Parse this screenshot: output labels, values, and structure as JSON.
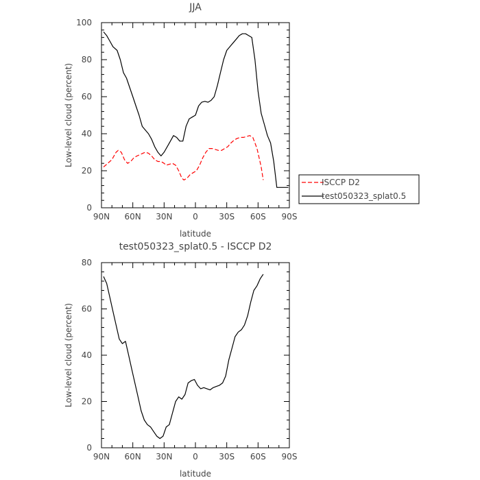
{
  "chart_data": [
    {
      "type": "line",
      "title": "JJA",
      "xlabel": "latitude",
      "ylabel": "Low-level cloud (percent)",
      "xlim": [
        -90,
        90
      ],
      "ylim": [
        0,
        100
      ],
      "x_ticks": [
        -90,
        -60,
        -30,
        0,
        30,
        60,
        90
      ],
      "x_tick_labels": [
        "90N",
        "60N",
        "30N",
        "0",
        "30S",
        "60S",
        "90S"
      ],
      "y_ticks": [
        0,
        20,
        40,
        60,
        80,
        100
      ],
      "y_tick_labels": [
        "0",
        "20",
        "40",
        "60",
        "80",
        "100"
      ],
      "legend_position": "right",
      "series": [
        {
          "name": "ISCCP D2",
          "color": "#ff0000",
          "dash": "dashed",
          "x": [
            -88,
            -84,
            -80,
            -76,
            -74,
            -71,
            -68,
            -65,
            -62,
            -59,
            -56,
            -52,
            -48,
            -45,
            -42,
            -39,
            -36,
            -33,
            -30,
            -28,
            -25,
            -22,
            -19,
            -16,
            -13,
            -11,
            -8,
            -5,
            -2,
            1,
            4,
            7,
            10,
            13,
            16,
            19,
            22,
            25,
            28,
            31,
            34,
            37,
            40,
            43,
            46,
            49,
            52,
            55,
            57,
            59,
            61,
            63,
            65
          ],
          "y": [
            22,
            24,
            26,
            30,
            31,
            30,
            26,
            24,
            25,
            27,
            28,
            29,
            30,
            29.5,
            28,
            26,
            25,
            25,
            24,
            23,
            23.5,
            24,
            23,
            20,
            16,
            15,
            16,
            18,
            19,
            20,
            23,
            27,
            30,
            32,
            32,
            31.5,
            31,
            31,
            32,
            33,
            35,
            36.5,
            37.5,
            38,
            38,
            38.5,
            39,
            38,
            35,
            32,
            27,
            22,
            15
          ]
        },
        {
          "name": "test050323_splat0.5",
          "color": "#000000",
          "dash": "solid",
          "x": [
            -88,
            -85,
            -82,
            -79,
            -75,
            -72,
            -69,
            -66,
            -63,
            -60,
            -57,
            -54,
            -51,
            -48,
            -45,
            -42,
            -39,
            -36,
            -33,
            -30,
            -27,
            -24,
            -21,
            -18,
            -15,
            -12,
            -9,
            -6,
            -3,
            0,
            3,
            6,
            9,
            12,
            15,
            18,
            21,
            24,
            27,
            30,
            33,
            36,
            39,
            42,
            45,
            48,
            51,
            54,
            57,
            60,
            63,
            66,
            69,
            72,
            75,
            78,
            81,
            84,
            87,
            89
          ],
          "y": [
            95,
            93,
            90,
            87,
            85,
            80,
            73,
            70,
            65,
            60,
            55,
            50,
            44,
            42,
            40,
            37,
            33,
            30,
            28,
            30,
            33,
            36,
            39,
            38,
            36,
            36,
            44,
            48,
            49,
            50,
            55,
            57,
            57.5,
            57,
            58,
            60,
            66,
            73,
            80,
            85,
            87,
            89,
            91,
            93,
            94,
            94,
            93,
            92,
            80,
            63,
            51,
            45,
            39,
            35,
            25,
            11,
            11,
            11,
            11,
            11
          ]
        }
      ]
    },
    {
      "type": "line",
      "title": "test050323_splat0.5 - ISCCP D2",
      "xlabel": "latitude",
      "ylabel": "Low-level cloud (percent)",
      "xlim": [
        -90,
        90
      ],
      "ylim": [
        0,
        80
      ],
      "x_ticks": [
        -90,
        -60,
        -30,
        0,
        30,
        60,
        90
      ],
      "x_tick_labels": [
        "90N",
        "60N",
        "30N",
        "0",
        "30S",
        "60S",
        "90S"
      ],
      "y_ticks": [
        0,
        20,
        40,
        60,
        80
      ],
      "y_tick_labels": [
        "0",
        "20",
        "40",
        "60",
        "80"
      ],
      "series": [
        {
          "color": "#000000",
          "dash": "solid",
          "x": [
            -88,
            -85,
            -82,
            -79,
            -76,
            -73,
            -70,
            -67,
            -64,
            -61,
            -58,
            -55,
            -52,
            -49,
            -46,
            -43,
            -40,
            -37,
            -34,
            -31,
            -28,
            -25,
            -22,
            -19,
            -16,
            -13,
            -10,
            -7,
            -4,
            -1,
            2,
            5,
            8,
            11,
            14,
            17,
            20,
            23,
            26,
            29,
            32,
            35,
            38,
            41,
            44,
            47,
            50,
            53,
            56,
            59,
            62,
            65
          ],
          "y": [
            74,
            71,
            65,
            59,
            53,
            47,
            45,
            46,
            40,
            34,
            28,
            22,
            16,
            12,
            10,
            9,
            7,
            5,
            4,
            5,
            9,
            10,
            15,
            20,
            22,
            21,
            23,
            28,
            29,
            29.5,
            27,
            25.5,
            26,
            25.5,
            25,
            26,
            26.5,
            27,
            28,
            31,
            38,
            43,
            48,
            50,
            51,
            53,
            57,
            63,
            68,
            70,
            73,
            75
          ]
        }
      ]
    }
  ]
}
